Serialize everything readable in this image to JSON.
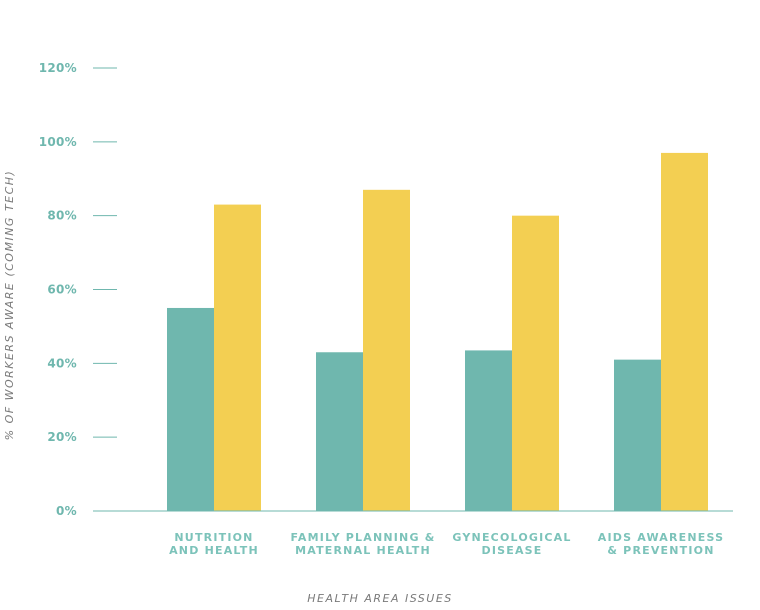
{
  "chart_data": {
    "type": "bar",
    "title": "",
    "xlabel": "HEALTH AREA ISSUES",
    "ylabel": "% OF WORKERS AWARE (COMING TECH)",
    "ylim": [
      0,
      120
    ],
    "yticks": [
      "0%",
      "20%",
      "40%",
      "60%",
      "80%",
      "100%",
      "120%"
    ],
    "ytick_values": [
      0,
      20,
      40,
      60,
      80,
      100,
      120
    ],
    "categories": [
      [
        "NUTRITION",
        "AND HEALTH"
      ],
      [
        "FAMILY PLANNING &",
        "MATERNAL HEALTH"
      ],
      [
        "GYNECOLOGICAL",
        "DISEASE"
      ],
      [
        "AIDS AWARENESS",
        "& PREVENTION"
      ]
    ],
    "series": [
      {
        "values": [
          55,
          43,
          43.5,
          41
        ],
        "color": "#6fb7ae"
      },
      {
        "values": [
          83,
          87,
          80,
          97
        ],
        "color": "#f3cf52"
      }
    ],
    "grid": false,
    "legend": "none"
  }
}
